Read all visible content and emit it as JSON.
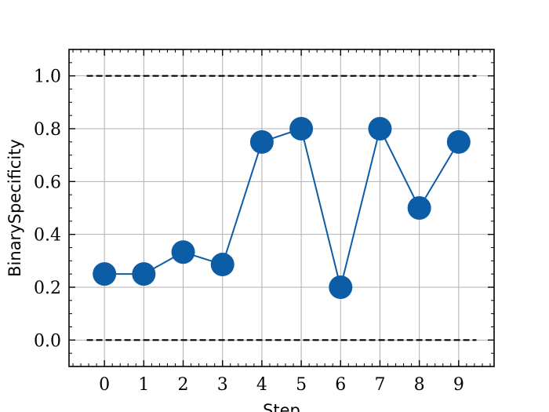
{
  "chart_data": {
    "type": "line",
    "title": "",
    "xlabel": "Step",
    "ylabel": "BinarySpecificity",
    "x": [
      0,
      1,
      2,
      3,
      4,
      5,
      6,
      7,
      8,
      9
    ],
    "series": [
      {
        "values": [
          0.25,
          0.25,
          0.333,
          0.286,
          0.75,
          0.8,
          0.2,
          0.8,
          0.5,
          0.75
        ],
        "color": "#0C5DA5"
      }
    ],
    "reference_lines": [
      {
        "y": 1.0,
        "style": "dashed",
        "color": "#000000"
      },
      {
        "y": 0.0,
        "style": "dashed",
        "color": "#000000"
      }
    ],
    "xlim": [
      -0.9,
      9.9
    ],
    "ylim": [
      -0.1,
      1.1
    ],
    "xticks": [
      "0",
      "1",
      "2",
      "3",
      "4",
      "5",
      "6",
      "7",
      "8",
      "9"
    ],
    "yticks": [
      "0.0",
      "0.2",
      "0.4",
      "0.6",
      "0.8",
      "1.0"
    ],
    "grid": true,
    "marker": "circle"
  }
}
